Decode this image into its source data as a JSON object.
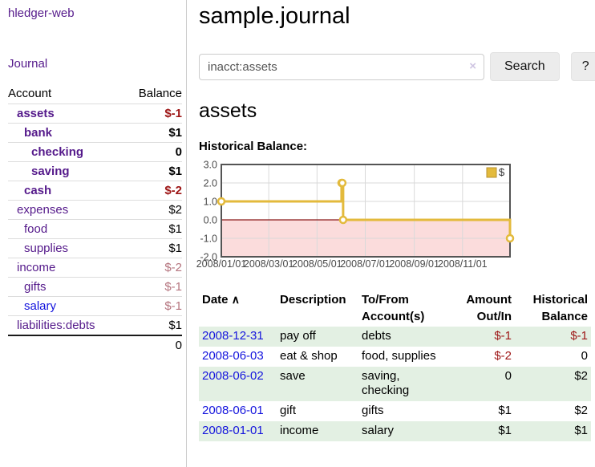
{
  "app": {
    "title": "hledger-web"
  },
  "colors": {
    "link_purple": "#551a8b",
    "link_blue": "#1414dd",
    "negative_strong": "#9d1515",
    "negative_soft": "#b4737d",
    "row_green": "#e3f0e3",
    "chart_gold": "#e3ba3c",
    "chart_negative_fill": "#fbdcdc",
    "chart_zero_line": "#8b1a1a"
  },
  "sidebar": {
    "journal_link": "Journal",
    "accounts": {
      "header_account": "Account",
      "header_balance": "Balance",
      "rows": [
        {
          "name": "assets",
          "balance": "$-1"
        },
        {
          "name": "bank",
          "balance": "$1"
        },
        {
          "name": "checking",
          "balance": "0"
        },
        {
          "name": "saving",
          "balance": "$1"
        },
        {
          "name": "cash",
          "balance": "$-2"
        },
        {
          "name": "expenses",
          "balance": "$2"
        },
        {
          "name": "food",
          "balance": "$1"
        },
        {
          "name": "supplies",
          "balance": "$1"
        },
        {
          "name": "income",
          "balance": "$-2"
        },
        {
          "name": "gifts",
          "balance": "$-1"
        },
        {
          "name": "salary",
          "balance": "$-1"
        },
        {
          "name": "liabilities:debts",
          "balance": "$1"
        }
      ],
      "total": "0"
    }
  },
  "main": {
    "title": "sample.journal",
    "search": {
      "value": "inacct:assets",
      "clear_icon": "×",
      "button": "Search",
      "help": "?"
    },
    "account_heading": "assets",
    "chart_label": "Historical Balance:"
  },
  "chart_data": {
    "type": "line",
    "title": "Historical Balance",
    "step": true,
    "series": [
      {
        "name": "$",
        "color": "#e3ba3c",
        "points": [
          {
            "date": "2008-01-01",
            "value": 1
          },
          {
            "date": "2008-06-01",
            "value": 2
          },
          {
            "date": "2008-06-02",
            "value": 2
          },
          {
            "date": "2008-06-03",
            "value": 0
          },
          {
            "date": "2008-12-31",
            "value": -1
          }
        ]
      }
    ],
    "x_ticks": [
      "2008/01/01",
      "2008/03/01",
      "2008/05/01",
      "2008/07/01",
      "2008/09/01",
      "2008/11/01"
    ],
    "y_ticks": [
      3.0,
      2.0,
      1.0,
      0.0,
      -1.0,
      -2.0
    ],
    "ylim": [
      -2,
      3
    ],
    "grid": true,
    "legend": {
      "label": "$",
      "position": "top-right"
    },
    "negative_region_fill": "#fbdcdc",
    "zero_line_color": "#8b1a1a"
  },
  "register": {
    "headers": {
      "date": "Date",
      "description": "Description",
      "accounts": "To/From Account(s)",
      "amount": "Amount Out/In",
      "balance": "Historical Balance"
    },
    "sort_icon": "∧",
    "rows": [
      {
        "date": "2008-12-31",
        "description": "pay off",
        "accounts": "debts",
        "amount": "$-1",
        "balance": "$-1"
      },
      {
        "date": "2008-06-03",
        "description": "eat & shop",
        "accounts": "food, supplies",
        "amount": "$-2",
        "balance": "0"
      },
      {
        "date": "2008-06-02",
        "description": "save",
        "accounts": "saving, checking",
        "amount": "0",
        "balance": "$2"
      },
      {
        "date": "2008-06-01",
        "description": "gift",
        "accounts": "gifts",
        "amount": "$1",
        "balance": "$2"
      },
      {
        "date": "2008-01-01",
        "description": "income",
        "accounts": "salary",
        "amount": "$1",
        "balance": "$1"
      }
    ]
  }
}
